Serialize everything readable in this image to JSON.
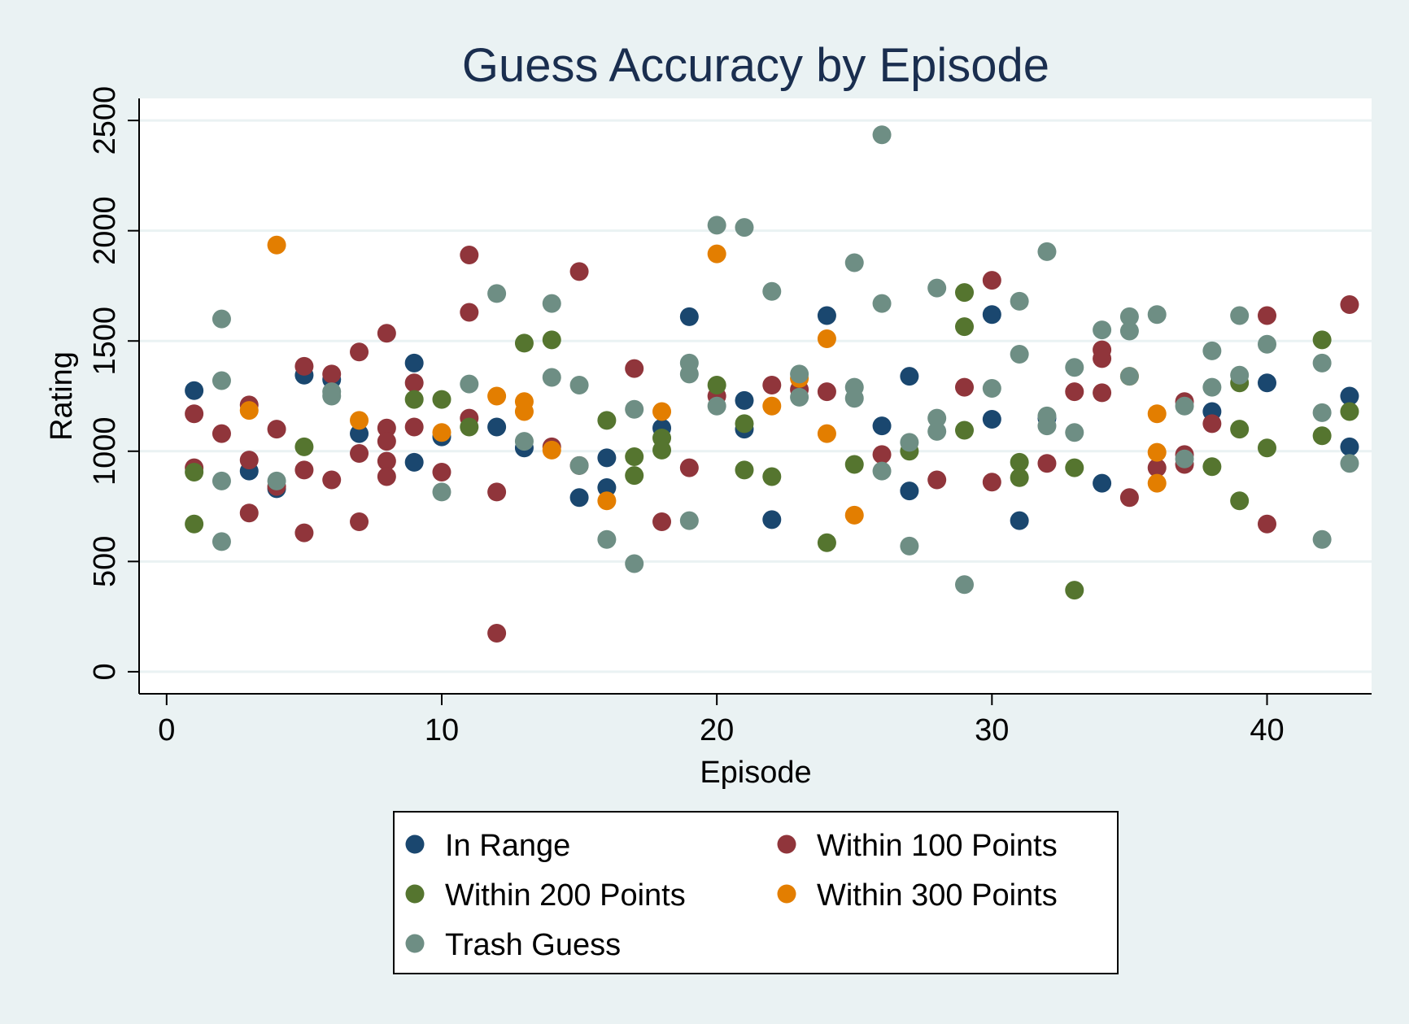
{
  "chart_data": {
    "type": "scatter",
    "title": "Guess Accuracy by Episode",
    "xlabel": "Episode",
    "ylabel": "Rating",
    "xlim": [
      -1,
      43.8
    ],
    "ylim": [
      -100,
      2600
    ],
    "xticks": [
      0,
      10,
      20,
      30,
      40
    ],
    "yticks": [
      0,
      500,
      1000,
      1500,
      2000,
      2500
    ],
    "grid": "horizontal",
    "legend_position": "bottom",
    "series": [
      {
        "name": "In Range",
        "color": "#1a476f",
        "points": [
          [
            1,
            1275
          ],
          [
            3,
            910
          ],
          [
            4,
            830
          ],
          [
            5,
            1345
          ],
          [
            6,
            1325
          ],
          [
            7,
            1080
          ],
          [
            9,
            1400
          ],
          [
            9,
            950
          ],
          [
            10,
            1065
          ],
          [
            12,
            1110
          ],
          [
            13,
            1015
          ],
          [
            15,
            790
          ],
          [
            16,
            970
          ],
          [
            16,
            835
          ],
          [
            18,
            1105
          ],
          [
            19,
            1610
          ],
          [
            21,
            1230
          ],
          [
            21,
            1100
          ],
          [
            22,
            690
          ],
          [
            24,
            1615
          ],
          [
            26,
            1115
          ],
          [
            27,
            1340
          ],
          [
            27,
            820
          ],
          [
            30,
            1620
          ],
          [
            30,
            1145
          ],
          [
            31,
            685
          ],
          [
            32,
            1150
          ],
          [
            34,
            855
          ],
          [
            38,
            1180
          ],
          [
            40,
            1310
          ],
          [
            43,
            1250
          ],
          [
            43,
            1020
          ]
        ]
      },
      {
        "name": "Within 100 Points",
        "color": "#90353b",
        "points": [
          [
            1,
            1170
          ],
          [
            1,
            925
          ],
          [
            2,
            1080
          ],
          [
            3,
            1210
          ],
          [
            3,
            960
          ],
          [
            3,
            720
          ],
          [
            4,
            1100
          ],
          [
            4,
            840
          ],
          [
            5,
            1385
          ],
          [
            5,
            915
          ],
          [
            5,
            630
          ],
          [
            6,
            1350
          ],
          [
            6,
            870
          ],
          [
            7,
            1450
          ],
          [
            7,
            990
          ],
          [
            7,
            680
          ],
          [
            8,
            1535
          ],
          [
            8,
            1105
          ],
          [
            8,
            1045
          ],
          [
            8,
            955
          ],
          [
            8,
            885
          ],
          [
            9,
            1310
          ],
          [
            9,
            1110
          ],
          [
            10,
            905
          ],
          [
            11,
            1890
          ],
          [
            11,
            1630
          ],
          [
            11,
            1150
          ],
          [
            12,
            815
          ],
          [
            12,
            175
          ],
          [
            14,
            1020
          ],
          [
            15,
            1815
          ],
          [
            15,
            935
          ],
          [
            17,
            1375
          ],
          [
            18,
            680
          ],
          [
            19,
            925
          ],
          [
            20,
            1250
          ],
          [
            22,
            1300
          ],
          [
            23,
            1280
          ],
          [
            24,
            1270
          ],
          [
            26,
            985
          ],
          [
            28,
            870
          ],
          [
            29,
            1290
          ],
          [
            30,
            1775
          ],
          [
            30,
            860
          ],
          [
            32,
            945
          ],
          [
            33,
            1270
          ],
          [
            34,
            1460
          ],
          [
            34,
            1420
          ],
          [
            34,
            1265
          ],
          [
            35,
            790
          ],
          [
            36,
            925
          ],
          [
            37,
            1225
          ],
          [
            37,
            985
          ],
          [
            37,
            940
          ],
          [
            38,
            1125
          ],
          [
            40,
            1615
          ],
          [
            40,
            670
          ],
          [
            43,
            1665
          ]
        ]
      },
      {
        "name": "Within 200 Points",
        "color": "#55752f",
        "points": [
          [
            1,
            905
          ],
          [
            1,
            670
          ],
          [
            5,
            1020
          ],
          [
            9,
            1235
          ],
          [
            10,
            1235
          ],
          [
            11,
            1110
          ],
          [
            13,
            1490
          ],
          [
            14,
            1505
          ],
          [
            16,
            1140
          ],
          [
            17,
            975
          ],
          [
            17,
            890
          ],
          [
            18,
            1060
          ],
          [
            18,
            1005
          ],
          [
            20,
            1300
          ],
          [
            21,
            1125
          ],
          [
            21,
            915
          ],
          [
            22,
            885
          ],
          [
            24,
            585
          ],
          [
            25,
            940
          ],
          [
            27,
            1000
          ],
          [
            29,
            1720
          ],
          [
            29,
            1565
          ],
          [
            29,
            1095
          ],
          [
            31,
            950
          ],
          [
            31,
            880
          ],
          [
            33,
            925
          ],
          [
            33,
            370
          ],
          [
            39,
            1310
          ],
          [
            39,
            1100
          ],
          [
            39,
            775
          ],
          [
            38,
            930
          ],
          [
            40,
            1015
          ],
          [
            42,
            1505
          ],
          [
            42,
            1070
          ],
          [
            43,
            1180
          ]
        ]
      },
      {
        "name": "Within 300 Points",
        "color": "#e37e00",
        "points": [
          [
            3,
            1185
          ],
          [
            4,
            1935
          ],
          [
            7,
            1140
          ],
          [
            10,
            1085
          ],
          [
            12,
            1250
          ],
          [
            13,
            1225
          ],
          [
            13,
            1180
          ],
          [
            14,
            1005
          ],
          [
            16,
            775
          ],
          [
            18,
            1180
          ],
          [
            20,
            1895
          ],
          [
            22,
            1205
          ],
          [
            23,
            1330
          ],
          [
            24,
            1510
          ],
          [
            24,
            1080
          ],
          [
            25,
            710
          ],
          [
            35,
            1340
          ],
          [
            36,
            1170
          ],
          [
            36,
            995
          ],
          [
            36,
            855
          ]
        ]
      },
      {
        "name": "Trash Guess",
        "color": "#6e8e84",
        "points": [
          [
            2,
            1600
          ],
          [
            2,
            1320
          ],
          [
            2,
            865
          ],
          [
            2,
            590
          ],
          [
            4,
            865
          ],
          [
            6,
            1270
          ],
          [
            6,
            1250
          ],
          [
            10,
            815
          ],
          [
            11,
            1305
          ],
          [
            12,
            1715
          ],
          [
            13,
            1045
          ],
          [
            14,
            1670
          ],
          [
            14,
            1335
          ],
          [
            15,
            1300
          ],
          [
            15,
            935
          ],
          [
            16,
            600
          ],
          [
            17,
            1190
          ],
          [
            17,
            490
          ],
          [
            19,
            1400
          ],
          [
            19,
            1350
          ],
          [
            19,
            685
          ],
          [
            20,
            2025
          ],
          [
            20,
            1205
          ],
          [
            21,
            2015
          ],
          [
            22,
            1725
          ],
          [
            23,
            1350
          ],
          [
            23,
            1245
          ],
          [
            25,
            1855
          ],
          [
            25,
            1290
          ],
          [
            25,
            1240
          ],
          [
            26,
            2435
          ],
          [
            26,
            1670
          ],
          [
            26,
            910
          ],
          [
            27,
            1040
          ],
          [
            27,
            570
          ],
          [
            28,
            1740
          ],
          [
            28,
            1150
          ],
          [
            28,
            1090
          ],
          [
            29,
            395
          ],
          [
            30,
            1285
          ],
          [
            31,
            1680
          ],
          [
            31,
            1440
          ],
          [
            32,
            1905
          ],
          [
            32,
            1160
          ],
          [
            32,
            1115
          ],
          [
            33,
            1380
          ],
          [
            33,
            1085
          ],
          [
            34,
            1550
          ],
          [
            35,
            1610
          ],
          [
            35,
            1545
          ],
          [
            35,
            1340
          ],
          [
            36,
            1620
          ],
          [
            37,
            1205
          ],
          [
            37,
            965
          ],
          [
            38,
            1455
          ],
          [
            38,
            1290
          ],
          [
            39,
            1615
          ],
          [
            39,
            1345
          ],
          [
            40,
            1485
          ],
          [
            42,
            1400
          ],
          [
            42,
            1175
          ],
          [
            42,
            600
          ],
          [
            43,
            945
          ]
        ]
      }
    ]
  }
}
